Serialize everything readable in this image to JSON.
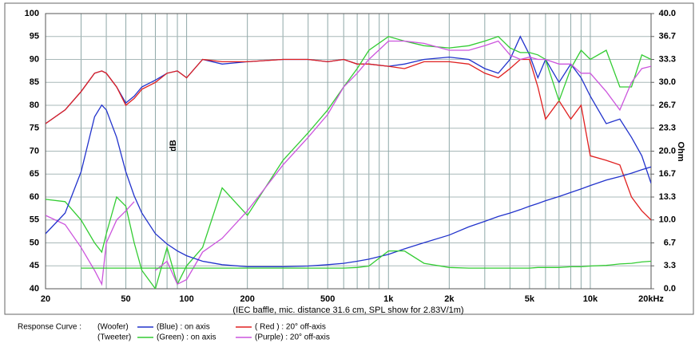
{
  "chart_data": {
    "type": "line",
    "x_label": "(IEC baffle, mic. distance 31.6 cm, SPL show for 2.83V/1m)",
    "y_label": "dB",
    "y2_label": "Ohm",
    "xlog": true,
    "grid": true,
    "minor_grid": true,
    "xlim": [
      20,
      20000
    ],
    "xticks": [
      20,
      50,
      100,
      200,
      500,
      {
        "value": 1000,
        "label": "1k"
      },
      {
        "value": 2000,
        "label": "2k"
      },
      {
        "value": 5000,
        "label": "5k"
      },
      {
        "value": 10000,
        "label": "10k"
      },
      {
        "value": 20000,
        "label": "20kHz"
      }
    ],
    "ylim": [
      40,
      100
    ],
    "yticks": [
      40,
      45,
      50,
      55,
      60,
      65,
      70,
      75,
      80,
      85,
      90,
      95,
      100
    ],
    "y2lim": [
      0,
      40
    ],
    "y2ticks": [
      {
        "value": 0,
        "label": "0.0"
      },
      {
        "value": 3.333,
        "label": "3.3"
      },
      {
        "value": 6.667,
        "label": "6.7"
      },
      {
        "value": 10,
        "label": "10.0"
      },
      {
        "value": 13.333,
        "label": "13.3"
      },
      {
        "value": 16.667,
        "label": "16.7"
      },
      {
        "value": 20,
        "label": "20.0"
      },
      {
        "value": 23.333,
        "label": "23.3"
      },
      {
        "value": 26.667,
        "label": "26.7"
      },
      {
        "value": 30,
        "label": "30.0"
      },
      {
        "value": 33.333,
        "label": "33.3"
      },
      {
        "value": 36.667,
        "label": "36.7"
      },
      {
        "value": 40,
        "label": "40.0"
      }
    ],
    "legend": {
      "title": "Response Curve :",
      "groups": [
        "(Woofer)",
        "(Tweeter)"
      ]
    },
    "x": [
      20,
      25,
      30,
      35,
      38,
      40,
      45,
      50,
      55,
      60,
      70,
      80,
      90,
      100,
      120,
      150,
      200,
      300,
      400,
      500,
      600,
      700,
      800,
      1000,
      1200,
      1500,
      2000,
      2500,
      3000,
      3500,
      4000,
      4500,
      5000,
      5500,
      6000,
      7000,
      8000,
      9000,
      10000,
      12000,
      14000,
      16000,
      18000,
      20000
    ],
    "series": [
      {
        "name": "(Blue) : on axis",
        "color": "#2233cc",
        "values": [
          76,
          79,
          83,
          87,
          87.5,
          87,
          84,
          80.5,
          82,
          84,
          85.5,
          87,
          87.5,
          86,
          90,
          89,
          89.5,
          90,
          90,
          89.5,
          90,
          89,
          89,
          88.5,
          89,
          90,
          90.5,
          90,
          88,
          87,
          90,
          95,
          91,
          86,
          90,
          85,
          89,
          86,
          82,
          76,
          77,
          73,
          69,
          63
        ]
      },
      {
        "name": "( Red ) : 20° off-axis",
        "color": "#e02020",
        "values": [
          76,
          79,
          83,
          87,
          87.5,
          87,
          84,
          80,
          81.5,
          83.5,
          85,
          87,
          87.5,
          86,
          90,
          89.5,
          89.5,
          90,
          90,
          89.5,
          90,
          89,
          89,
          88.5,
          88,
          89.5,
          89.5,
          89,
          87,
          86,
          88,
          90,
          90,
          84,
          77,
          81,
          77,
          80,
          69,
          68,
          67,
          60,
          57,
          55
        ]
      },
      {
        "name": "(Green) : on axis",
        "color": "#33cc33",
        "values": [
          59.5,
          59,
          55,
          50,
          48,
          52,
          60,
          58,
          50,
          44,
          40,
          49,
          41,
          45,
          49,
          62,
          56,
          68,
          74,
          79,
          84,
          88,
          92,
          95,
          94,
          93,
          92.5,
          93,
          94,
          95,
          92.5,
          91.5,
          91.5,
          91,
          90,
          81,
          88,
          92,
          90,
          92,
          84,
          84,
          91,
          90
        ]
      },
      {
        "name": "(Purple) : 20° off-axis",
        "color": "#cc55dd",
        "values": [
          56,
          54,
          49,
          44,
          41,
          50,
          55,
          57,
          59,
          null,
          44,
          46,
          41,
          42,
          48,
          51,
          57,
          67,
          73,
          78,
          84,
          87,
          90,
          94,
          94,
          93.5,
          92,
          92,
          93,
          94,
          91,
          90,
          90.5,
          90,
          90,
          89,
          89,
          87,
          87,
          83,
          79,
          85,
          88,
          88.5
        ]
      },
      {
        "color": "#2233cc",
        "axis": "y2",
        "values": [
          8,
          11,
          17,
          25,
          26.7,
          26,
          22,
          17,
          13.5,
          11,
          8,
          6.5,
          5.5,
          4.8,
          4,
          3.5,
          3.2,
          3.2,
          3.3,
          3.5,
          3.7,
          4,
          4.3,
          5,
          5.8,
          6.7,
          7.8,
          9,
          9.8,
          10.5,
          11,
          11.5,
          12,
          12.4,
          12.8,
          13.4,
          14,
          14.5,
          15,
          15.8,
          16.3,
          16.8,
          17.3,
          17.7
        ]
      },
      {
        "color": "#33cc33",
        "axis": "y2",
        "values": [
          null,
          null,
          3,
          3,
          3,
          3,
          3,
          3,
          3,
          3,
          3,
          3,
          3,
          3,
          3,
          3,
          3,
          3,
          3,
          3,
          3,
          3.1,
          3.3,
          5.5,
          5.5,
          3.7,
          3.1,
          3,
          3,
          3,
          3,
          3,
          3,
          3.1,
          3.1,
          3.1,
          3.2,
          3.2,
          3.3,
          3.4,
          3.6,
          3.7,
          3.9,
          4
        ]
      }
    ]
  }
}
